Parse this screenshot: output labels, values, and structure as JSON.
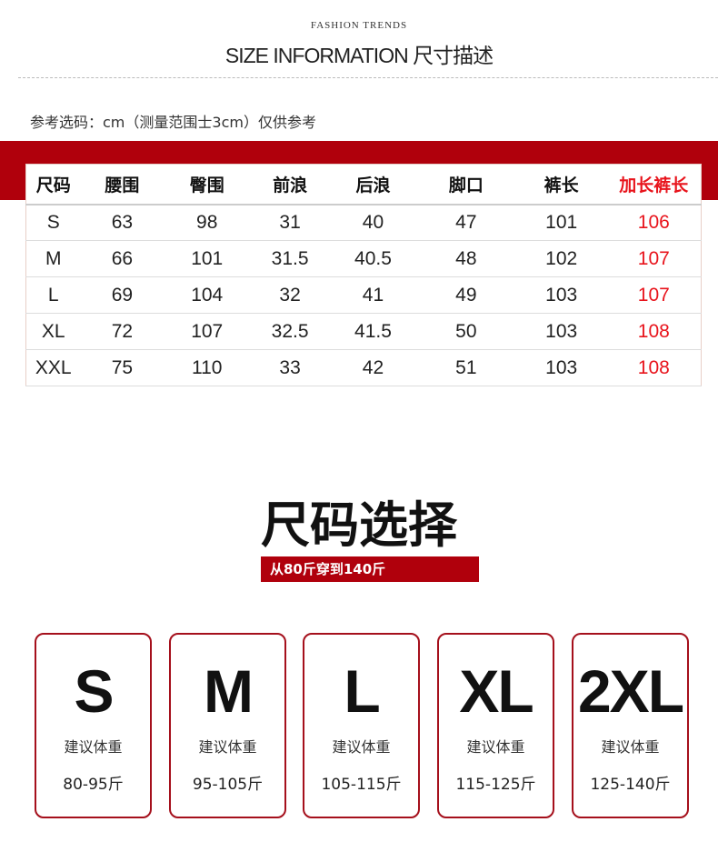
{
  "header": {
    "kicker": "FASHION TRENDS",
    "title": "SIZE INFORMATION 尺寸描述",
    "note": "参考选码：cm（测量范围士3cm）仅供参考"
  },
  "table": {
    "columns": [
      "尺码",
      "腰围",
      "臀围",
      "前浪",
      "后浪",
      "脚口",
      "裤长",
      "加长裤长"
    ],
    "rows": [
      [
        "S",
        "63",
        "98",
        "31",
        "40",
        "47",
        "101",
        "106"
      ],
      [
        "M",
        "66",
        "101",
        "31.5",
        "40.5",
        "48",
        "102",
        "107"
      ],
      [
        "L",
        "69",
        "104",
        "32",
        "41",
        "49",
        "103",
        "107"
      ],
      [
        "XL",
        "72",
        "107",
        "32.5",
        "41.5",
        "50",
        "103",
        "108"
      ],
      [
        "XXL",
        "75",
        "110",
        "33",
        "42",
        "51",
        "103",
        "108"
      ]
    ]
  },
  "selection": {
    "title": "尺码选择",
    "subtitle": "从80斤穿到140斤",
    "cards": [
      {
        "size": "S",
        "label": "建议体重",
        "weight": "80-95斤"
      },
      {
        "size": "M",
        "label": "建议体重",
        "weight": "95-105斤"
      },
      {
        "size": "L",
        "label": "建议体重",
        "weight": "105-115斤"
      },
      {
        "size": "XL",
        "label": "建议体重",
        "weight": "115-125斤"
      },
      {
        "size": "2XL",
        "label": "建议体重",
        "weight": "125-140斤"
      }
    ]
  },
  "colors": {
    "accent": "#b0000c",
    "highlight": "#e8141c"
  }
}
